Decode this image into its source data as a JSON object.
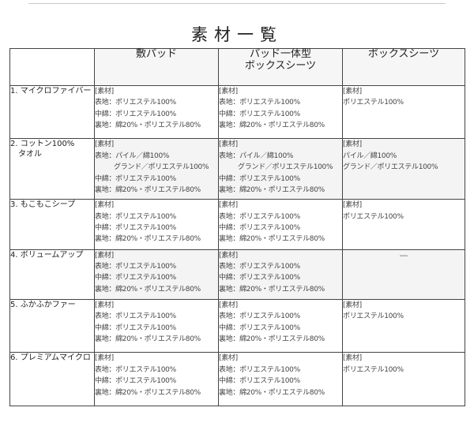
{
  "title": "素材一覧",
  "columns": [
    "敷パッド",
    "パッド一体型\nボックスシーツ",
    "ボックスシーツ"
  ],
  "dash": "—",
  "rows": [
    {
      "label": "1. マイクロファイバー",
      "cells": [
        [
          "[素材]",
          "表地：ポリエステル100%",
          "中綿：ポリエステル100%",
          "裏地：綿20%・ポリエステル80%"
        ],
        [
          "[素材]",
          "表地：ポリエステル100%",
          "中綿：ポリエステル100%",
          "裏地：綿20%・ポリエステル80%"
        ],
        [
          "[素材]",
          "ポリエステル100%"
        ]
      ]
    },
    {
      "label": "2. コットン100%\n　タオル",
      "cells": [
        [
          "[素材]",
          "表地：パイル／綿100%",
          "　グランド／ポリエステル100%",
          "中綿：ポリエステル100%",
          "裏地：綿20%・ポリエステル80%"
        ],
        [
          "[素材]",
          "表地：パイル／綿100%",
          "　グランド／ポリエステル100%",
          "中綿：ポリエステル100%",
          "裏地：綿20%・ポリエステル80%"
        ],
        [
          "[素材]",
          "パイル／綿100%",
          "グランド／ポリエステル100%"
        ]
      ]
    },
    {
      "label": "3. もこもこシープ",
      "cells": [
        [
          "[素材]",
          "表地：ポリエステル100%",
          "中綿：ポリエステル100%",
          "裏地：綿20%・ポリエステル80%"
        ],
        [
          "[素材]",
          "表地：ポリエステル100%",
          "中綿：ポリエステル100%",
          "裏地：綿20%・ポリエステル80%"
        ],
        [
          "[素材]",
          "ポリエステル100%"
        ]
      ]
    },
    {
      "label": "4. ボリュームアップ",
      "cells": [
        [
          "[素材]",
          "表地：ポリエステル100%",
          "中綿：ポリエステル100%",
          "裏地：綿20%・ポリエステル80%"
        ],
        [
          "[素材]",
          "表地：ポリエステル100%",
          "中綿：ポリエステル100%",
          "裏地：綿20%・ポリエステル80%"
        ],
        []
      ]
    },
    {
      "label": "5. ふかふかファー",
      "cells": [
        [
          "[素材]",
          "表地：ポリエステル100%",
          "中綿：ポリエステル100%",
          "裏地：綿20%・ポリエステル80%"
        ],
        [
          "[素材]",
          "表地：ポリエステル100%",
          "中綿：ポリエステル100%",
          "裏地：綿20%・ポリエステル80%"
        ],
        [
          "[素材]",
          "ポリエステル100%"
        ]
      ]
    },
    {
      "label": "6. プレミアムマイクロ",
      "cells": [
        [
          "[素材]",
          "表地：ポリエステル100%",
          "中綿：ポリエステル100%",
          "裏地：綿20%・ポリエステル80%"
        ],
        [
          "[素材]",
          "表地：ポリエステル100%",
          "中綿：ポリエステル100%",
          "裏地：綿20%・ポリエステル80%"
        ],
        [
          "[素材]",
          "ポリエステル100%"
        ]
      ]
    }
  ]
}
